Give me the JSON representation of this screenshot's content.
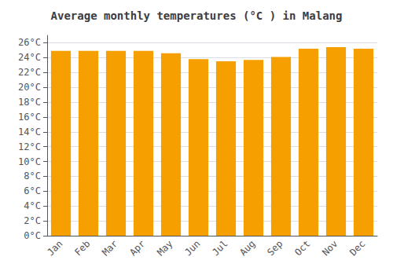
{
  "chart_data": {
    "type": "bar",
    "title": "Average monthly temperatures (°C ) in Malang",
    "categories": [
      "Jan",
      "Feb",
      "Mar",
      "Apr",
      "May",
      "Jun",
      "Jul",
      "Aug",
      "Sep",
      "Oct",
      "Nov",
      "Dec"
    ],
    "values": [
      24.9,
      24.9,
      24.9,
      24.9,
      24.6,
      23.8,
      23.5,
      23.7,
      24.1,
      25.2,
      25.4,
      25.2
    ],
    "color": "#F5A000",
    "ylim": [
      0,
      27
    ],
    "yticks": [
      {
        "value": 0,
        "label": "0°C"
      },
      {
        "value": 2,
        "label": "2°C"
      },
      {
        "value": 4,
        "label": "4°C"
      },
      {
        "value": 6,
        "label": "6°C"
      },
      {
        "value": 8,
        "label": "8°C"
      },
      {
        "value": 10,
        "label": "10°C"
      },
      {
        "value": 12,
        "label": "12°C"
      },
      {
        "value": 14,
        "label": "14°C"
      },
      {
        "value": 16,
        "label": "16°C"
      },
      {
        "value": 18,
        "label": "18°C"
      },
      {
        "value": 20,
        "label": "20°C"
      },
      {
        "value": 22,
        "label": "22°C"
      },
      {
        "value": 24,
        "label": "24°C"
      },
      {
        "value": 26,
        "label": "26°C"
      }
    ],
    "grid": true
  }
}
